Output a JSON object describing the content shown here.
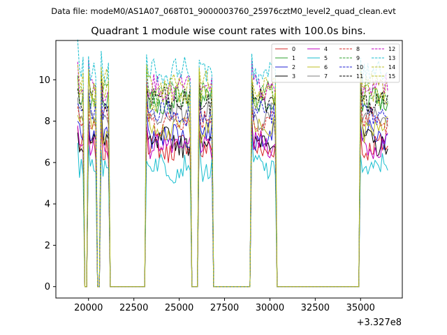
{
  "header": {
    "data_file": "Data file: modeM0/AS1A07_068T01_9000003760_25976cztM0_level2_quad_clean.evt"
  },
  "chart_data": {
    "type": "line",
    "title": "Quadrant 1 module wise count rates with 100.0s bins.",
    "xlabel": "",
    "ylabel": "",
    "x_offset_label": "+3.327e8",
    "xlim": [
      18200,
      37300
    ],
    "ylim": [
      -0.55,
      11.9
    ],
    "xticks": [
      20000,
      22500,
      25000,
      27500,
      30000,
      32500,
      35000
    ],
    "xtick_labels": [
      "20000",
      "22500",
      "25000",
      "27500",
      "30000",
      "32500",
      "35000"
    ],
    "yticks": [
      0,
      2,
      4,
      6,
      8,
      10
    ],
    "ytick_labels": [
      "0",
      "2",
      "4",
      "6",
      "8",
      "10"
    ],
    "grid": false,
    "legend": {
      "placement": "top-right",
      "columns": 4
    },
    "active_intervals": [
      [
        19400,
        19700
      ],
      [
        19950,
        20400
      ],
      [
        20700,
        21100
      ],
      [
        23150,
        25650
      ],
      [
        26100,
        26850
      ],
      [
        28950,
        30350
      ],
      [
        35000,
        36550
      ]
    ],
    "series": [
      {
        "name": "0",
        "color": "#d62728",
        "dash": "solid",
        "level": 6.7
      },
      {
        "name": "1",
        "color": "#2ca02c",
        "dash": "solid",
        "level": 8.9
      },
      {
        "name": "2",
        "color": "#1f1fd6",
        "dash": "solid",
        "level": 7.3
      },
      {
        "name": "3",
        "color": "#000000",
        "dash": "solid",
        "level": 7.0
      },
      {
        "name": "4",
        "color": "#c000c0",
        "dash": "solid",
        "level": 6.8
      },
      {
        "name": "5",
        "color": "#17becf",
        "dash": "solid",
        "level": 5.8
      },
      {
        "name": "6",
        "color": "#bcbd22",
        "dash": "solid",
        "level": 7.7
      },
      {
        "name": "7",
        "color": "#7f7f7f",
        "dash": "solid",
        "level": 8.3
      },
      {
        "name": "8",
        "color": "#d62728",
        "dash": "dashed",
        "level": 8.0
      },
      {
        "name": "9",
        "color": "#2ca02c",
        "dash": "dashed",
        "level": 9.3
      },
      {
        "name": "10",
        "color": "#1f1fd6",
        "dash": "dashed",
        "level": 8.4
      },
      {
        "name": "11",
        "color": "#000000",
        "dash": "dashed",
        "level": 9.0
      },
      {
        "name": "12",
        "color": "#c000c0",
        "dash": "dashed",
        "level": 9.6
      },
      {
        "name": "13",
        "color": "#17becf",
        "dash": "dashed",
        "level": 10.4
      },
      {
        "name": "14",
        "color": "#bcbd22",
        "dash": "dashed",
        "level": 9.8
      },
      {
        "name": "15",
        "color": "#bcbd22",
        "dash": "dashed",
        "level": 9.2
      }
    ]
  }
}
